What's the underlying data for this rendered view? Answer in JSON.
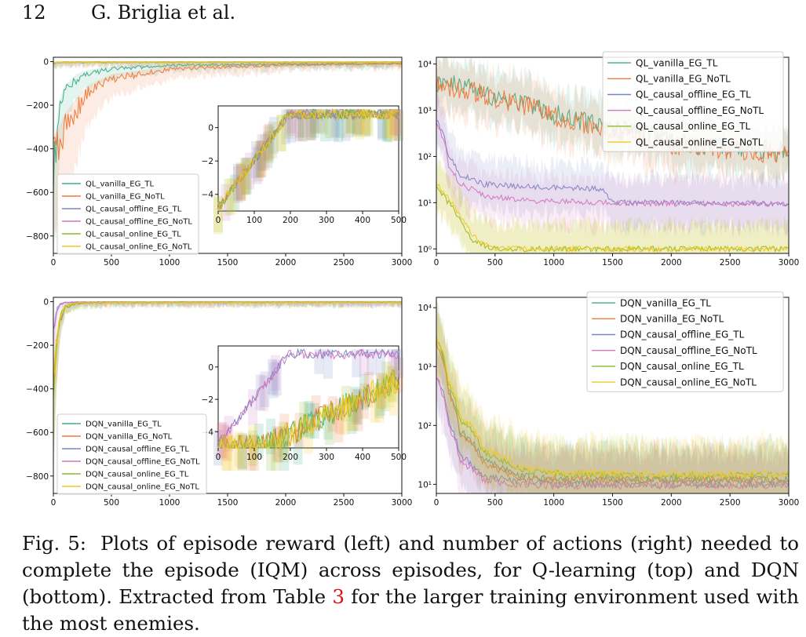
{
  "header": {
    "page": "12",
    "authors": "G. Briglia et al."
  },
  "caption": {
    "lead": "Fig. 5:",
    "text_before": "Plots of episode reward (left) and number of actions (right) needed to complete the episode (IQM) across episodes, for Q-learning (top) and DQN (bottom). Extracted from Table",
    "ref": "3",
    "text_after": "for the larger training environment used with the most enemies."
  },
  "colors": {
    "vanilla_TL": "#3fae8b",
    "vanilla_NoTL": "#ef7a3c",
    "offline_TL": "#7a86c4",
    "offline_NoTL": "#d377c0",
    "online_TL": "#8dba2a",
    "online_NoTL": "#f2c81e"
  },
  "chart_data": [
    {
      "id": "ql_reward",
      "type": "line",
      "xlim": [
        0,
        3000
      ],
      "ylim": [
        -880,
        20
      ],
      "x_ticks": [
        "0",
        "500",
        "1000",
        "1500",
        "2000",
        "2500",
        "3000"
      ],
      "y_ticks": [
        "0",
        "−200",
        "−400",
        "−600",
        "−800"
      ],
      "legend_position": "lower-left",
      "series": [
        {
          "name": "QL_vanilla_EG_TL",
          "x": [
            0,
            50,
            100,
            200,
            300,
            500,
            1000,
            2000,
            3000
          ],
          "y": [
            -400,
            -180,
            -110,
            -60,
            -40,
            -25,
            -12,
            -8,
            -5
          ]
        },
        {
          "name": "QL_vanilla_EG_NoTL",
          "x": [
            0,
            50,
            100,
            200,
            300,
            500,
            1000,
            2000,
            3000
          ],
          "y": [
            -350,
            -300,
            -240,
            -170,
            -110,
            -60,
            -25,
            -10,
            -5
          ]
        },
        {
          "name": "QL_causal_offline_EG_TL",
          "x": [
            0,
            30,
            100,
            3000
          ],
          "y": [
            -5,
            -2,
            -1,
            -1
          ]
        },
        {
          "name": "QL_causal_offline_EG_NoTL",
          "x": [
            0,
            30,
            100,
            3000
          ],
          "y": [
            -6,
            -2,
            -1,
            -1
          ]
        },
        {
          "name": "QL_causal_online_EG_TL",
          "x": [
            0,
            30,
            100,
            3000
          ],
          "y": [
            -3,
            -1,
            -1,
            -1
          ]
        },
        {
          "name": "QL_causal_online_EG_NoTL",
          "x": [
            0,
            30,
            100,
            3000
          ],
          "y": [
            -3,
            -1,
            -1,
            -1
          ]
        }
      ],
      "inset": {
        "xlim": [
          0,
          500
        ],
        "ylim": [
          -5,
          1.3
        ],
        "x_ticks": [
          "0",
          "100",
          "200",
          "300",
          "400",
          "500"
        ],
        "y_ticks": [
          "0",
          "−2",
          "−4"
        ]
      }
    },
    {
      "id": "ql_actions",
      "type": "line",
      "y_scale": "log",
      "xlim": [
        0,
        3000
      ],
      "ylim": [
        0.8,
        14000
      ],
      "x_ticks": [
        "0",
        "500",
        "1000",
        "1500",
        "2000",
        "2500",
        "3000"
      ],
      "y_ticks": [
        "10⁰",
        "10¹",
        "10²",
        "10³",
        "10⁴"
      ],
      "legend_position": "upper-right",
      "series": [
        {
          "name": "QL_vanilla_EG_TL",
          "x": [
            0,
            200,
            500,
            1000,
            1500,
            2000,
            2500,
            3000
          ],
          "y": [
            4000,
            3500,
            2000,
            800,
            400,
            200,
            150,
            120
          ]
        },
        {
          "name": "QL_vanilla_EG_NoTL",
          "x": [
            0,
            200,
            500,
            1000,
            1500,
            2000,
            2500,
            3000
          ],
          "y": [
            3500,
            3000,
            1800,
            700,
            350,
            180,
            140,
            110
          ]
        },
        {
          "name": "QL_causal_offline_EG_TL",
          "x": [
            0,
            100,
            200,
            400,
            800,
            1400,
            1500,
            2000,
            3000
          ],
          "y": [
            600,
            100,
            40,
            25,
            22,
            20,
            10,
            10,
            9.5
          ]
        },
        {
          "name": "QL_causal_offline_EG_NoTL",
          "x": [
            0,
            100,
            200,
            400,
            800,
            1500,
            2000,
            3000
          ],
          "y": [
            500,
            60,
            25,
            14,
            11,
            10,
            9.5,
            9.5
          ]
        },
        {
          "name": "QL_causal_online_EG_TL",
          "x": [
            0,
            100,
            200,
            300,
            400,
            500,
            3000
          ],
          "y": [
            20,
            10,
            4,
            1.5,
            1.2,
            1,
            1
          ]
        },
        {
          "name": "QL_causal_online_EG_NoTL",
          "x": [
            0,
            100,
            200,
            300,
            400,
            500,
            3000
          ],
          "y": [
            25,
            12,
            5,
            2,
            1.3,
            1,
            1
          ]
        }
      ]
    },
    {
      "id": "dqn_reward",
      "type": "line",
      "xlim": [
        0,
        3000
      ],
      "ylim": [
        -880,
        20
      ],
      "x_ticks": [
        "0",
        "500",
        "1000",
        "1500",
        "2000",
        "2500",
        "3000"
      ],
      "y_ticks": [
        "0",
        "−200",
        "−400",
        "−600",
        "−800"
      ],
      "legend_position": "lower-left",
      "series": [
        {
          "name": "DQN_vanilla_EG_TL",
          "x": [
            0,
            30,
            60,
            100,
            200,
            500,
            3000
          ],
          "y": [
            -300,
            -150,
            -60,
            -20,
            -5,
            -1,
            0
          ]
        },
        {
          "name": "DQN_vanilla_EG_NoTL",
          "x": [
            0,
            30,
            60,
            100,
            200,
            500,
            3000
          ],
          "y": [
            -250,
            -130,
            -50,
            -15,
            -4,
            -1,
            0
          ]
        },
        {
          "name": "DQN_causal_offline_EG_TL",
          "x": [
            0,
            30,
            60,
            100,
            200,
            3000
          ],
          "y": [
            -100,
            -30,
            -8,
            -2,
            0,
            0
          ]
        },
        {
          "name": "DQN_causal_offline_EG_NoTL",
          "x": [
            0,
            30,
            60,
            100,
            200,
            3000
          ],
          "y": [
            -90,
            -25,
            -6,
            -2,
            0,
            0
          ]
        },
        {
          "name": "DQN_causal_online_EG_TL",
          "x": [
            0,
            30,
            60,
            100,
            200,
            500,
            3000
          ],
          "y": [
            -280,
            -140,
            -50,
            -15,
            -4,
            -1,
            0
          ]
        },
        {
          "name": "DQN_causal_online_EG_NoTL",
          "x": [
            0,
            30,
            60,
            100,
            200,
            500,
            3000
          ],
          "y": [
            -270,
            -130,
            -45,
            -14,
            -4,
            -1,
            0
          ]
        }
      ],
      "inset": {
        "xlim": [
          0,
          500
        ],
        "ylim": [
          -5,
          1.3
        ],
        "x_ticks": [
          "0",
          "100",
          "200",
          "300",
          "400",
          "500"
        ],
        "y_ticks": [
          "0",
          "−2",
          "−4"
        ]
      }
    },
    {
      "id": "dqn_actions",
      "type": "line",
      "y_scale": "log",
      "xlim": [
        0,
        3000
      ],
      "ylim": [
        7,
        15000
      ],
      "x_ticks": [
        "0",
        "500",
        "1000",
        "1500",
        "2000",
        "2500",
        "3000"
      ],
      "y_ticks": [
        "10¹",
        "10²",
        "10³",
        "10⁴"
      ],
      "legend_position": "upper-right",
      "series": [
        {
          "name": "DQN_vanilla_EG_TL",
          "x": [
            0,
            100,
            200,
            400,
            700,
            1000,
            2000,
            3000
          ],
          "y": [
            3000,
            400,
            80,
            25,
            14,
            12,
            12,
            12
          ]
        },
        {
          "name": "DQN_vanilla_EG_NoTL",
          "x": [
            0,
            100,
            200,
            400,
            700,
            1000,
            2000,
            3000
          ],
          "y": [
            2500,
            350,
            70,
            22,
            13,
            12,
            12,
            12
          ]
        },
        {
          "name": "DQN_causal_offline_EG_TL",
          "x": [
            0,
            100,
            200,
            400,
            700,
            1000,
            2000,
            3000
          ],
          "y": [
            700,
            120,
            30,
            14,
            11,
            10,
            10,
            10
          ]
        },
        {
          "name": "DQN_causal_offline_EG_NoTL",
          "x": [
            0,
            100,
            200,
            400,
            700,
            1000,
            2000,
            3000
          ],
          "y": [
            600,
            100,
            25,
            12,
            10,
            9.5,
            9.5,
            9.5
          ]
        },
        {
          "name": "DQN_causal_online_EG_TL",
          "x": [
            0,
            100,
            200,
            400,
            700,
            1000,
            2000,
            3000
          ],
          "y": [
            2800,
            500,
            120,
            35,
            18,
            15,
            14,
            14
          ]
        },
        {
          "name": "DQN_causal_online_EG_NoTL",
          "x": [
            0,
            100,
            200,
            400,
            700,
            1000,
            2000,
            3000
          ],
          "y": [
            3200,
            600,
            150,
            40,
            20,
            16,
            15,
            15
          ]
        }
      ]
    }
  ]
}
